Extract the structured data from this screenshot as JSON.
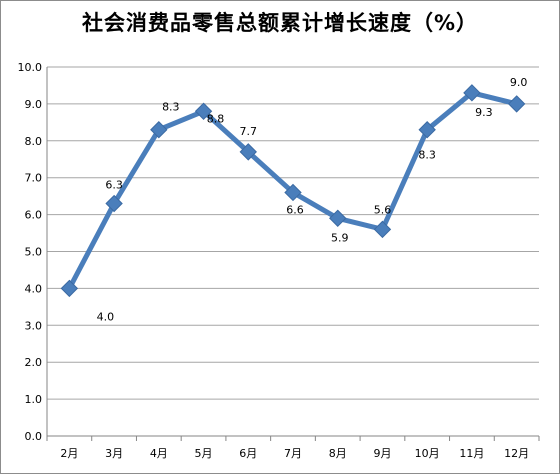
{
  "chart_data": {
    "type": "line",
    "title": "社会消费品零售总额累计增长速度（%）",
    "xlabel": "",
    "ylabel": "",
    "categories": [
      "2月",
      "3月",
      "4月",
      "5月",
      "6月",
      "7月",
      "8月",
      "9月",
      "10月",
      "11月",
      "12月"
    ],
    "series": [
      {
        "values": [
          4.0,
          6.3,
          8.3,
          8.8,
          7.7,
          6.6,
          5.9,
          5.6,
          8.3,
          9.3,
          9.0
        ],
        "data_labels": [
          "4.0",
          "6.3",
          "8.3",
          "8.8",
          "7.7",
          "6.6",
          "5.9",
          "5.6",
          "8.3",
          "9.3",
          "9.0"
        ]
      }
    ],
    "ylim": [
      0,
      10
    ],
    "yticks": [
      "0.0",
      "1.0",
      "2.0",
      "3.0",
      "4.0",
      "5.0",
      "6.0",
      "7.0",
      "8.0",
      "9.0",
      "10.0"
    ],
    "grid": true,
    "legend": "none",
    "line_color": "#4a7ebb",
    "grid_color": "#a6a6a6"
  }
}
